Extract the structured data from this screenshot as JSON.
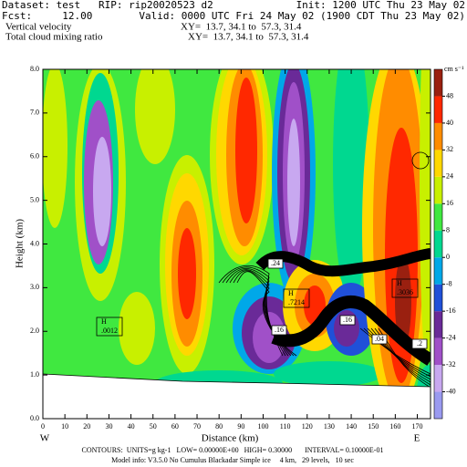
{
  "chart_data": {
    "type": "contour",
    "dataset": "Dataset: test   RIP: rip20020523 d2",
    "init": "Init: 1200 UTC Thu 23 May 02",
    "fcst": "Fcst:     12.00",
    "valid": "Valid: 0000 UTC Fri 24 May 02 (1900 CDT Thu 23 May 02)",
    "field1": "Vertical velocity",
    "field1_xy": "XY=  13.7, 34.1 to  57.3, 31.4",
    "field2": "Total cloud mixing ratio",
    "field2_xy": "XY=  13.7, 34.1 to  57.3, 31.4",
    "xlabel": "Distance (km)",
    "ylabel": "Height (km)",
    "x_end_labels": [
      "W",
      "E"
    ],
    "xlim": [
      0,
      176
    ],
    "xticks": [
      0,
      10,
      20,
      30,
      40,
      50,
      60,
      70,
      80,
      90,
      100,
      110,
      120,
      130,
      140,
      150,
      160,
      170
    ],
    "ylim": [
      0,
      8
    ],
    "yticks": [
      {
        "value": 0,
        "label": "0.0"
      },
      {
        "value": 1,
        "label": "1.0"
      },
      {
        "value": 2,
        "label": "2.0"
      },
      {
        "value": 3,
        "label": "3.0"
      },
      {
        "value": 4,
        "label": "4.0"
      },
      {
        "value": 5,
        "label": "5.0"
      },
      {
        "value": 6,
        "label": "6.0"
      },
      {
        "value": 7,
        "label": "7.0"
      },
      {
        "value": 8,
        "label": "8.0"
      }
    ],
    "colorbar": {
      "label": "cm s⁻¹",
      "lim": [
        -48,
        56
      ],
      "ticks": [
        -40,
        -32,
        -24,
        -16,
        -8,
        0,
        8,
        16,
        24,
        32,
        40,
        48
      ],
      "colors": [
        "#9a9af0",
        "#c8a8f0",
        "#a050c8",
        "#6a2a98",
        "#2050d8",
        "#00a8e8",
        "#00d890",
        "#40e840",
        "#c8f000",
        "#ffd800",
        "#ff8c00",
        "#ff2800",
        "#9a2010"
      ]
    },
    "annotations": [
      {
        "text": "H",
        "value": ".0012"
      },
      {
        "text": "H",
        "value": ".7214"
      },
      {
        "text": "H",
        "value": ".3036"
      },
      {
        "text": ".24"
      },
      {
        "text": ".16"
      },
      {
        "text": ".16"
      },
      {
        "text": ".04"
      },
      {
        "text": ".2"
      }
    ],
    "footer": [
      "CONTOURS:  UNITS=g kg-1   LOW= 0.00000E+00   HIGH= 0.30000       INTERVAL= 0.10000E-01",
      "Model info: V3.5.0 No Cumulus Blackadar Simple ice     4 km,   29 levels,   10 sec"
    ]
  }
}
